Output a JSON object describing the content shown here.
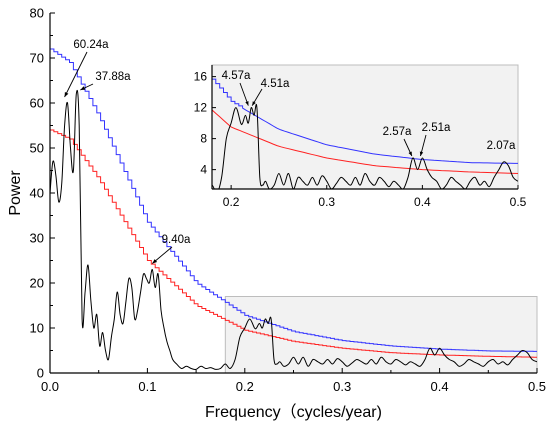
{
  "chart_data": [
    {
      "type": "line",
      "title": "",
      "xlabel": "Frequency（cycles/year)",
      "ylabel": "Power",
      "xlim": [
        0,
        0.5
      ],
      "ylim": [
        0,
        80
      ],
      "xticks": [
        "0.0",
        "0.1",
        "0.2",
        "0.3",
        "0.4",
        "0.5"
      ],
      "yticks": [
        "0",
        "10",
        "20",
        "30",
        "40",
        "50",
        "60",
        "70",
        "80"
      ],
      "grid": false,
      "colors": {
        "spectrum": "#000000",
        "upper_confidence": "#3333ff",
        "lower_confidence": "#ff2222",
        "highlight_box": "#cccccc"
      },
      "highlight_region": {
        "x": [
          0.18,
          0.5
        ],
        "y": [
          0,
          17
        ]
      },
      "series": [
        {
          "role": "spectrum",
          "x": [
            0,
            0.003,
            0.006,
            0.009,
            0.012,
            0.015,
            0.018,
            0.021,
            0.024,
            0.027,
            0.03,
            0.033,
            0.036,
            0.039,
            0.042,
            0.045,
            0.048,
            0.051,
            0.054,
            0.057,
            0.06,
            0.063,
            0.066,
            0.069,
            0.072,
            0.075,
            0.078,
            0.081,
            0.084,
            0.087,
            0.09,
            0.093,
            0.096,
            0.099,
            0.102,
            0.105,
            0.108,
            0.111,
            0.114,
            0.117,
            0.12,
            0.123,
            0.126,
            0.13,
            0.135,
            0.14,
            0.145,
            0.15,
            0.155,
            0.16,
            0.165,
            0.17,
            0.175,
            0.18,
            0.185,
            0.19,
            0.195,
            0.2,
            0.205,
            0.21,
            0.212,
            0.215,
            0.218,
            0.221,
            0.224,
            0.227,
            0.23,
            0.233,
            0.236,
            0.24,
            0.245,
            0.25,
            0.255,
            0.26,
            0.265,
            0.27,
            0.275,
            0.28,
            0.285,
            0.29,
            0.295,
            0.3,
            0.305,
            0.31,
            0.315,
            0.32,
            0.325,
            0.33,
            0.335,
            0.34,
            0.345,
            0.35,
            0.355,
            0.36,
            0.365,
            0.37,
            0.375,
            0.38,
            0.385,
            0.39,
            0.395,
            0.4,
            0.405,
            0.41,
            0.415,
            0.42,
            0.425,
            0.43,
            0.435,
            0.44,
            0.445,
            0.45,
            0.455,
            0.46,
            0.465,
            0.47,
            0.475,
            0.48,
            0.485,
            0.49,
            0.495,
            0.5
          ],
          "y": [
            40,
            47,
            44,
            38,
            42,
            55,
            60,
            50,
            45,
            62,
            55,
            12,
            18,
            24,
            16,
            10,
            13,
            6,
            9,
            5,
            3,
            8,
            12,
            18,
            13,
            11,
            16,
            21,
            19,
            12,
            14,
            18,
            22,
            21,
            20,
            23,
            19,
            22,
            14,
            10,
            7,
            5,
            3,
            2,
            1,
            1.5,
            1,
            0.8,
            1.5,
            1,
            1.2,
            0.8,
            1,
            2,
            1,
            3,
            8,
            10,
            12,
            10,
            10,
            11,
            10,
            12,
            11,
            12,
            3,
            2,
            2.5,
            1.5,
            2,
            3.5,
            2,
            3.5,
            1.5,
            3,
            2.5,
            2,
            3,
            2,
            3.2,
            2.5,
            1.5,
            2.2,
            3,
            2.5,
            2,
            3,
            2,
            3.5,
            2.5,
            2,
            3,
            2.5,
            1.8,
            2.5,
            2,
            1.5,
            3,
            5.5,
            4,
            5.5,
            4,
            3,
            2.5,
            1.5,
            2,
            3,
            2.5,
            2,
            1.5,
            2.5,
            3,
            2,
            2.5,
            1.8,
            3,
            4,
            5,
            4.5,
            3,
            2.5
          ]
        },
        {
          "role": "upper_confidence",
          "x": [
            0,
            0.02,
            0.05,
            0.1,
            0.15,
            0.2,
            0.25,
            0.3,
            0.35,
            0.4,
            0.45,
            0.5
          ],
          "y": [
            72,
            69,
            57,
            33.5,
            20,
            12.8,
            9.2,
            7.2,
            6,
            5.3,
            4.9,
            4.8
          ]
        },
        {
          "role": "lower_confidence",
          "x": [
            0,
            0.02,
            0.05,
            0.1,
            0.15,
            0.2,
            0.25,
            0.3,
            0.35,
            0.4,
            0.45,
            0.5
          ],
          "y": [
            54,
            52,
            43,
            25,
            15,
            9.5,
            7,
            5.5,
            4.5,
            4,
            3.7,
            3.5
          ]
        }
      ],
      "annotations": [
        {
          "text": "60.24a",
          "x": 0.017,
          "y": 60
        },
        {
          "text": "37.88a",
          "x": 0.027,
          "y": 62
        },
        {
          "text": "9.40a",
          "x": 0.105,
          "y": 23
        }
      ]
    },
    {
      "type": "line",
      "role": "inset",
      "title": "",
      "xlabel": "",
      "ylabel": "",
      "xlim": [
        0.18,
        0.5
      ],
      "ylim": [
        1.5,
        17.5
      ],
      "xticks": [
        "0.2",
        "0.3",
        "0.4",
        "0.5"
      ],
      "yticks": [
        "4",
        "8",
        "12",
        "16"
      ],
      "grid": false,
      "annotations": [
        {
          "text": "4.57a",
          "x": 0.218,
          "y": 12
        },
        {
          "text": "4.51a",
          "x": 0.222,
          "y": 12
        },
        {
          "text": "2.57a",
          "x": 0.389,
          "y": 5.5
        },
        {
          "text": "2.51a",
          "x": 0.398,
          "y": 5.5
        },
        {
          "text": "2.07a",
          "x": 0.483,
          "y": 5
        }
      ]
    }
  ]
}
